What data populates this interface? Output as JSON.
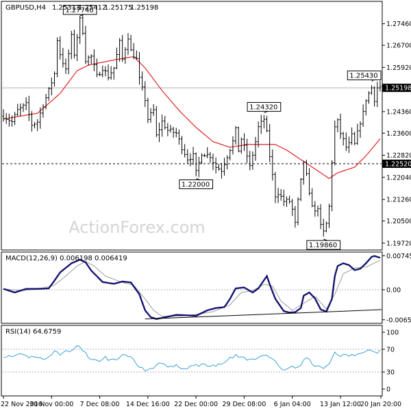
{
  "chart_data": [
    {
      "panel": "price",
      "type": "ohlc",
      "title": "GBPUSD,H4",
      "header_values": [
        "1.25313",
        "1.25412",
        "1.25175",
        "1.25198"
      ],
      "watermark": "ActionForex.com",
      "ylim": [
        1.195,
        1.282
      ],
      "yticks": [
        {
          "v": 1.2746,
          "label": "1.27460"
        },
        {
          "v": 1.267,
          "label": "1.26700"
        },
        {
          "v": 1.2592,
          "label": "1.25920"
        },
        {
          "v": 1.2436,
          "label": "1.24360"
        },
        {
          "v": 1.236,
          "label": "1.23600"
        },
        {
          "v": 1.2282,
          "label": "1.22820"
        },
        {
          "v": 1.2204,
          "label": "1.22040"
        },
        {
          "v": 1.2126,
          "label": "1.21260"
        },
        {
          "v": 1.205,
          "label": "1.20500"
        },
        {
          "v": 1.1972,
          "label": "1.19720"
        }
      ],
      "current_price": {
        "v": 1.25198,
        "label": "1.25198"
      },
      "dashed_level": {
        "v": 1.2252,
        "label": "1.22520"
      },
      "annotations": [
        {
          "label": "1.27740",
          "v": 1.2774,
          "bar": 27
        },
        {
          "label": "1.24320",
          "v": 1.2432,
          "bar": 92
        },
        {
          "label": "1.22000",
          "v": 1.22,
          "bar": 68
        },
        {
          "label": "1.25430",
          "v": 1.2543,
          "bar": 130
        },
        {
          "label": "1.19860",
          "v": 1.1986,
          "bar": 113
        }
      ],
      "anchors": [
        [
          0,
          1.242
        ],
        [
          3,
          1.24
        ],
        [
          5,
          1.244
        ],
        [
          8,
          1.246
        ],
        [
          10,
          1.239
        ],
        [
          12,
          1.24
        ],
        [
          14,
          1.246
        ],
        [
          16,
          1.251
        ],
        [
          18,
          1.257
        ],
        [
          19,
          1.269
        ],
        [
          20,
          1.264
        ],
        [
          22,
          1.258
        ],
        [
          24,
          1.27
        ],
        [
          25,
          1.264
        ],
        [
          27,
          1.276
        ],
        [
          28,
          1.272
        ],
        [
          29,
          1.262
        ],
        [
          31,
          1.263
        ],
        [
          33,
          1.256
        ],
        [
          35,
          1.259
        ],
        [
          37,
          1.256
        ],
        [
          39,
          1.259
        ],
        [
          41,
          1.268
        ],
        [
          42,
          1.262
        ],
        [
          44,
          1.27
        ],
        [
          45,
          1.265
        ],
        [
          47,
          1.262
        ],
        [
          48,
          1.255
        ],
        [
          50,
          1.248
        ],
        [
          51,
          1.241
        ],
        [
          53,
          1.244
        ],
        [
          54,
          1.235
        ],
        [
          56,
          1.24
        ],
        [
          58,
          1.237
        ],
        [
          61,
          1.236
        ],
        [
          63,
          1.231
        ],
        [
          65,
          1.227
        ],
        [
          67,
          1.228
        ],
        [
          68,
          1.222
        ],
        [
          70,
          1.229
        ],
        [
          73,
          1.228
        ],
        [
          75,
          1.224
        ],
        [
          77,
          1.223
        ],
        [
          79,
          1.228
        ],
        [
          81,
          1.233
        ],
        [
          82,
          1.237
        ],
        [
          83,
          1.23
        ],
        [
          84,
          1.234
        ],
        [
          86,
          1.228
        ],
        [
          87,
          1.224
        ],
        [
          89,
          1.233
        ],
        [
          90,
          1.238
        ],
        [
          92,
          1.241
        ],
        [
          93,
          1.236
        ],
        [
          94,
          1.228
        ],
        [
          95,
          1.221
        ],
        [
          96,
          1.214
        ],
        [
          97,
          1.215
        ],
        [
          99,
          1.212
        ],
        [
          101,
          1.212
        ],
        [
          102,
          1.209
        ],
        [
          103,
          1.204
        ],
        [
          104,
          1.212
        ],
        [
          106,
          1.226
        ],
        [
          107,
          1.221
        ],
        [
          108,
          1.214
        ],
        [
          110,
          1.208
        ],
        [
          111,
          1.21
        ],
        [
          112,
          1.203
        ],
        [
          113,
          1.201
        ],
        [
          114,
          1.204
        ],
        [
          115,
          1.21
        ],
        [
          116,
          1.226
        ],
        [
          117,
          1.238
        ],
        [
          118,
          1.24
        ],
        [
          119,
          1.236
        ],
        [
          121,
          1.231
        ],
        [
          122,
          1.232
        ],
        [
          123,
          1.235
        ],
        [
          124,
          1.232
        ],
        [
          126,
          1.24
        ],
        [
          127,
          1.243
        ],
        [
          128,
          1.248
        ],
        [
          130,
          1.252
        ],
        [
          131,
          1.248
        ],
        [
          132,
          1.252
        ],
        [
          133,
          1.2525
        ]
      ],
      "ma_anchors": [
        [
          0,
          1.241
        ],
        [
          12,
          1.243
        ],
        [
          20,
          1.25
        ],
        [
          26,
          1.258
        ],
        [
          30,
          1.26
        ],
        [
          40,
          1.262
        ],
        [
          46,
          1.263
        ],
        [
          50,
          1.259
        ],
        [
          56,
          1.251
        ],
        [
          62,
          1.244
        ],
        [
          68,
          1.238
        ],
        [
          74,
          1.233
        ],
        [
          80,
          1.231
        ],
        [
          86,
          1.232
        ],
        [
          92,
          1.232
        ],
        [
          96,
          1.232
        ],
        [
          100,
          1.23
        ],
        [
          106,
          1.226
        ],
        [
          112,
          1.222
        ],
        [
          115,
          1.22
        ],
        [
          118,
          1.222
        ],
        [
          124,
          1.224
        ],
        [
          128,
          1.228
        ],
        [
          133,
          1.234
        ]
      ],
      "ma_color": "#e02020"
    },
    {
      "panel": "macd",
      "type": "line",
      "title": "MACD(12,26,9) 0.006198 0.006419",
      "ylim": [
        -0.0072,
        0.0081
      ],
      "yticks": [
        {
          "v": 0.007452,
          "label": "0.007452"
        },
        {
          "v": 0.0,
          "label": "0.00"
        },
        {
          "v": -0.006568,
          "label": "-0.006568"
        }
      ],
      "macd_anchors": [
        [
          0,
          0.0002
        ],
        [
          4,
          -0.0006
        ],
        [
          8,
          0.0002
        ],
        [
          12,
          0.0002
        ],
        [
          16,
          0.0003
        ],
        [
          18,
          0.002
        ],
        [
          20,
          0.0038
        ],
        [
          24,
          0.0058
        ],
        [
          27,
          0.0066
        ],
        [
          29,
          0.006
        ],
        [
          31,
          0.0042
        ],
        [
          35,
          0.0017
        ],
        [
          39,
          0.0013
        ],
        [
          42,
          0.0018
        ],
        [
          45,
          0.0016
        ],
        [
          48,
          -0.001
        ],
        [
          50,
          -0.0045
        ],
        [
          52,
          -0.006
        ],
        [
          54,
          -0.0064
        ],
        [
          58,
          -0.0059
        ],
        [
          61,
          -0.0055
        ],
        [
          65,
          -0.0056
        ],
        [
          68,
          -0.0057
        ],
        [
          72,
          -0.0045
        ],
        [
          75,
          -0.004
        ],
        [
          78,
          -0.0038
        ],
        [
          80,
          -0.002
        ],
        [
          82,
          0.0003
        ],
        [
          85,
          0.0005
        ],
        [
          88,
          -0.0006
        ],
        [
          90,
          0.0003
        ],
        [
          93,
          0.003
        ],
        [
          94,
          0.0012
        ],
        [
          96,
          -0.002
        ],
        [
          99,
          -0.0047
        ],
        [
          101,
          -0.005
        ],
        [
          103,
          -0.0049
        ],
        [
          105,
          -0.004
        ],
        [
          106,
          -0.0013
        ],
        [
          108,
          -0.0006
        ],
        [
          110,
          -0.0019
        ],
        [
          112,
          -0.0043
        ],
        [
          114,
          -0.0048
        ],
        [
          116,
          -0.002
        ],
        [
          117,
          0.003
        ],
        [
          118,
          0.0052
        ],
        [
          120,
          0.0058
        ],
        [
          122,
          0.0054
        ],
        [
          124,
          0.0043
        ],
        [
          126,
          0.0046
        ],
        [
          128,
          0.0058
        ],
        [
          130,
          0.0072
        ],
        [
          131,
          0.0074
        ],
        [
          133,
          0.007
        ]
      ],
      "signal_anchors": [
        [
          0,
          0.0002
        ],
        [
          6,
          -0.0002
        ],
        [
          12,
          0.0001
        ],
        [
          18,
          0.001
        ],
        [
          22,
          0.003
        ],
        [
          26,
          0.0052
        ],
        [
          29,
          0.0062
        ],
        [
          32,
          0.0052
        ],
        [
          36,
          0.003
        ],
        [
          42,
          0.0016
        ],
        [
          46,
          0.001
        ],
        [
          50,
          -0.002
        ],
        [
          53,
          -0.0045
        ],
        [
          56,
          -0.0058
        ],
        [
          62,
          -0.0058
        ],
        [
          68,
          -0.0054
        ],
        [
          74,
          -0.0048
        ],
        [
          80,
          -0.0033
        ],
        [
          84,
          -0.0006
        ],
        [
          88,
          -0.0002
        ],
        [
          92,
          0.0012
        ],
        [
          95,
          0.0008
        ],
        [
          98,
          -0.0025
        ],
        [
          102,
          -0.0045
        ],
        [
          106,
          -0.003
        ],
        [
          110,
          -0.0014
        ],
        [
          114,
          -0.0042
        ],
        [
          117,
          -0.001
        ],
        [
          120,
          0.0035
        ],
        [
          124,
          0.0048
        ],
        [
          128,
          0.005
        ],
        [
          133,
          0.0064
        ]
      ],
      "trendline": [
        [
          50,
          -0.0064
        ],
        [
          140,
          -0.0042
        ]
      ]
    },
    {
      "panel": "rsi",
      "type": "line",
      "title": "RSI(14) 64.6759",
      "ylim": [
        0,
        100
      ],
      "yticks": [
        {
          "v": 100,
          "label": "100"
        },
        {
          "v": 70,
          "label": "70"
        },
        {
          "v": 30,
          "label": "30"
        },
        {
          "v": 0,
          "label": "0"
        }
      ],
      "rsi_anchors": [
        [
          0,
          58
        ],
        [
          3,
          55
        ],
        [
          6,
          60
        ],
        [
          9,
          56
        ],
        [
          12,
          58
        ],
        [
          15,
          52
        ],
        [
          18,
          66
        ],
        [
          20,
          62
        ],
        [
          22,
          70
        ],
        [
          24,
          66
        ],
        [
          26,
          75
        ],
        [
          28,
          70
        ],
        [
          30,
          56
        ],
        [
          33,
          48
        ],
        [
          36,
          55
        ],
        [
          39,
          50
        ],
        [
          42,
          60
        ],
        [
          45,
          54
        ],
        [
          48,
          40
        ],
        [
          50,
          32
        ],
        [
          52,
          35
        ],
        [
          55,
          44
        ],
        [
          58,
          40
        ],
        [
          61,
          42
        ],
        [
          64,
          36
        ],
        [
          67,
          40
        ],
        [
          70,
          44
        ],
        [
          73,
          40
        ],
        [
          76,
          44
        ],
        [
          79,
          50
        ],
        [
          82,
          60
        ],
        [
          85,
          54
        ],
        [
          88,
          50
        ],
        [
          91,
          58
        ],
        [
          93,
          62
        ],
        [
          95,
          52
        ],
        [
          97,
          42
        ],
        [
          99,
          36
        ],
        [
          101,
          40
        ],
        [
          103,
          38
        ],
        [
          105,
          42
        ],
        [
          107,
          56
        ],
        [
          109,
          44
        ],
        [
          111,
          40
        ],
        [
          113,
          36
        ],
        [
          115,
          44
        ],
        [
          117,
          64
        ],
        [
          119,
          58
        ],
        [
          121,
          62
        ],
        [
          123,
          58
        ],
        [
          125,
          64
        ],
        [
          127,
          62
        ],
        [
          129,
          72
        ],
        [
          131,
          64
        ],
        [
          133,
          66
        ]
      ]
    }
  ],
  "x_axis": {
    "total_bars": 134,
    "labels": [
      {
        "bar": 0,
        "label": "22 Nov 2016"
      },
      {
        "bar": 17,
        "label": "30 Nov 00:00"
      },
      {
        "bar": 34,
        "label": "7 Dec 08:00"
      },
      {
        "bar": 51,
        "label": "14 Dec 16:00"
      },
      {
        "bar": 68,
        "label": "22 Dec 00:00"
      },
      {
        "bar": 85,
        "label": "29 Dec 08:00"
      },
      {
        "bar": 102,
        "label": "6 Jan 04:00"
      },
      {
        "bar": 119,
        "label": "13 Jan 12:00"
      },
      {
        "bar": 136,
        "label": "20 Jan 20:00"
      }
    ]
  }
}
